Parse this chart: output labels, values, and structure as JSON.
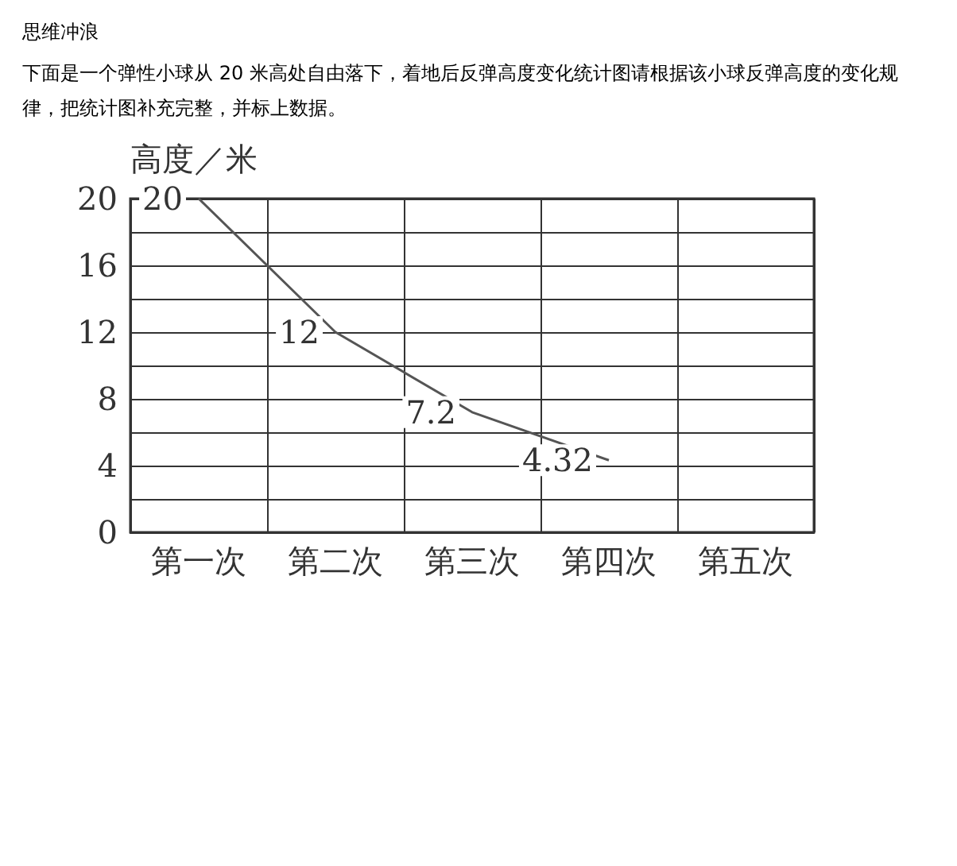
{
  "chart_data": {
    "type": "line",
    "title": "思维冲浪",
    "subtitle": "下面是一个弹性小球从 20 米高处自由落下，着地后反弹高度变化统计图请根据该小球反弹高度的变化规律，把统计图补充完整，并标上数据。",
    "ylabel": "高度／米",
    "categories": [
      "第一次",
      "第二次",
      "第三次",
      "第四次",
      "第五次"
    ],
    "series": [
      {
        "color": "#555555",
        "values": [
          20,
          12,
          7.2,
          4.32,
          null
        ]
      }
    ],
    "ylim": [
      0,
      20
    ],
    "yticks": [
      0,
      {
        "value": 2,
        "label": null
      },
      4,
      {
        "value": 6,
        "label": null
      },
      8,
      {
        "value": 10,
        "label": null
      },
      12,
      {
        "value": 14,
        "label": null
      },
      16,
      {
        "value": 18,
        "label": null
      },
      20
    ],
    "grid": true,
    "data_labels": true,
    "marker": "none",
    "line_style": "solid"
  }
}
